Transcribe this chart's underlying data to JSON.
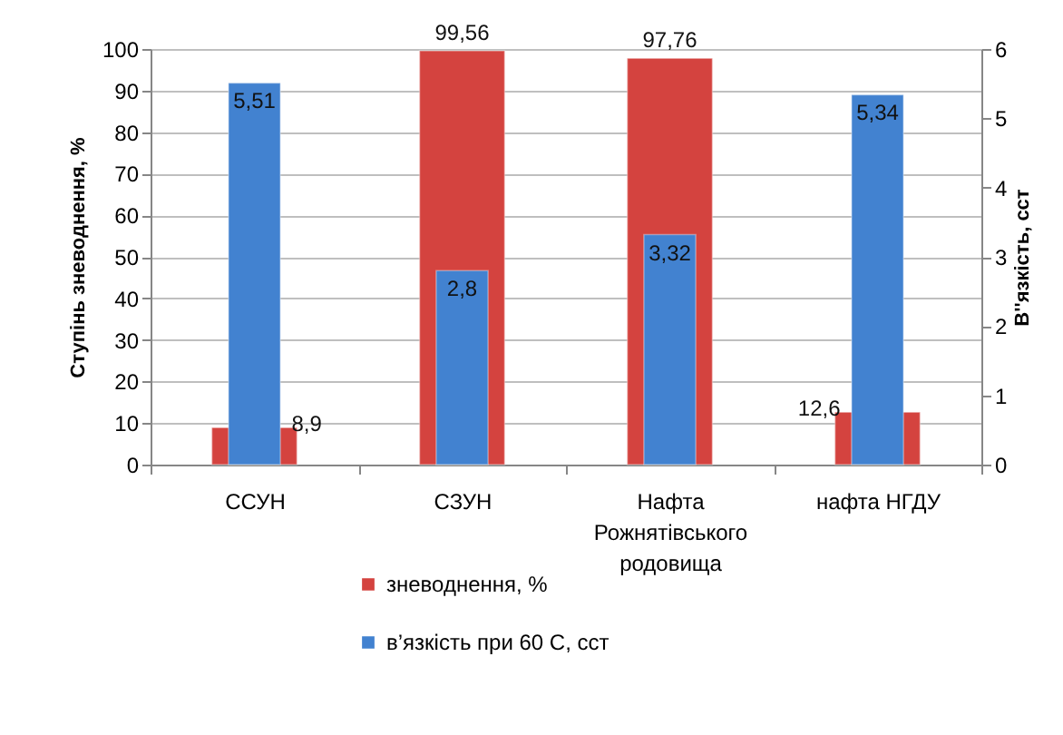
{
  "chart_data": {
    "type": "bar",
    "ylabel": "Ступінь зневоднення, %",
    "y2label": "В''язкість, сст",
    "categories": [
      "ССУН",
      "СЗУН",
      "Нафта Рожнятівського родовища",
      "нафта НГДУ"
    ],
    "series": [
      {
        "name": "зневоднення, %",
        "color": "#d4433f",
        "values": [
          8.9,
          99.56,
          97.76,
          12.6
        ],
        "value_labels": [
          "8,9",
          "99,56",
          "97,76",
          "12,6"
        ]
      },
      {
        "name": "в’язкість при 60 С, сст",
        "color": "#4282d0",
        "axis": "y2",
        "values": [
          5.51,
          2.8,
          3.32,
          5.34
        ],
        "value_labels": [
          "5,51",
          "2,8",
          "3,32",
          "5,34"
        ]
      }
    ],
    "ylim": [
      0,
      100
    ],
    "yticks": [
      0,
      10,
      20,
      30,
      40,
      50,
      60,
      70,
      80,
      90,
      100
    ],
    "y2lim": [
      0,
      6
    ],
    "y2ticks": [
      0,
      1,
      2,
      3,
      4,
      5,
      6
    ],
    "grid": "y",
    "legend": "bottom"
  }
}
